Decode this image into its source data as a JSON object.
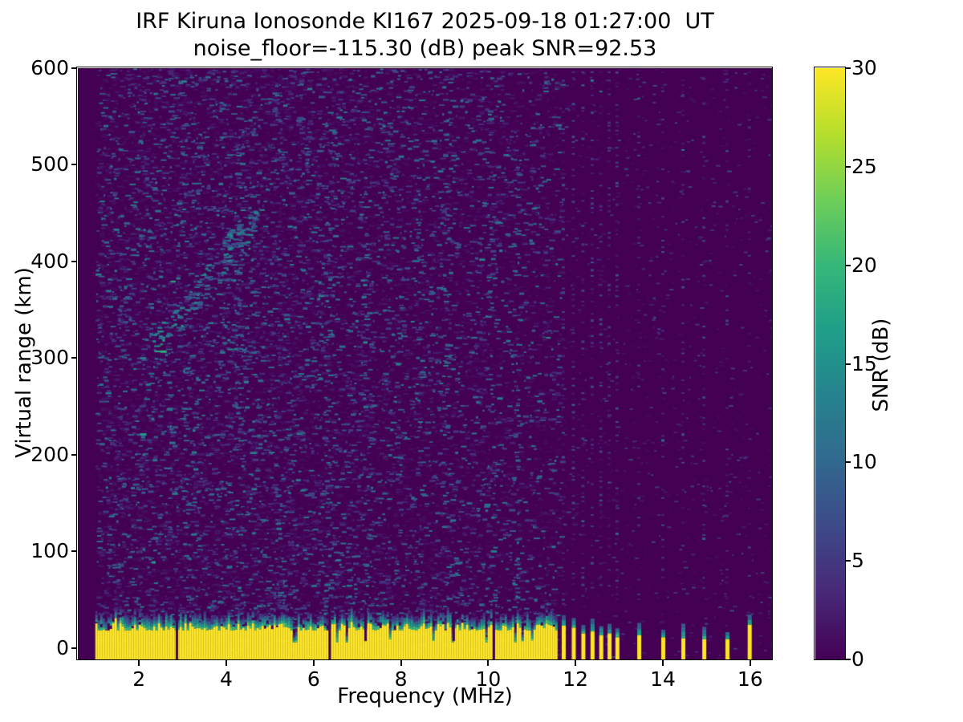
{
  "figure": {
    "title_line1": "IRF Kiruna Ionosonde KI167 2025-09-18 01:27:00  UT",
    "title_line2": "noise_floor=-115.30 (dB) peak SNR=92.53"
  },
  "chart_data": {
    "type": "heatmap",
    "title": "IRF Kiruna Ionosonde KI167 2025-09-18 01:27:00 UT\nnoise_floor=-115.30 (dB) peak SNR=92.53",
    "station": "KI167",
    "timestamp_ut": "2025-09-18 01:27:00",
    "noise_floor_db": -115.3,
    "peak_snr_db": 92.53,
    "xlabel": "Frequency (MHz)",
    "ylabel": "Virtual range (km)",
    "x_range_mhz": [
      0.6,
      16.5
    ],
    "y_range_km": [
      -12,
      600
    ],
    "x_ticks": [
      2,
      4,
      6,
      8,
      10,
      12,
      14,
      16
    ],
    "y_ticks": [
      0,
      100,
      200,
      300,
      400,
      500,
      600
    ],
    "grid": false,
    "colormap": "viridis",
    "colorbar": {
      "label": "SNR (dB)",
      "ticks": [
        0,
        5,
        10,
        15,
        20,
        25,
        30
      ],
      "min": 0,
      "max": 30,
      "position": "right"
    },
    "features": {
      "data_start_mhz": 1.0,
      "ground_clutter_band": {
        "freq_range_mhz": [
          1.0,
          11.58
        ],
        "saturated_top_km": 22,
        "transition_top_km": 40,
        "value_db": 30
      },
      "band_gaps_mhz": [
        2.86,
        6.36,
        10.12
      ],
      "band_notches_mhz": [
        7.18,
        9.2
      ],
      "echo_trace_points_mhz_km": [
        [
          2.3,
          308
        ],
        [
          2.6,
          326
        ],
        [
          2.9,
          344
        ],
        [
          3.2,
          362
        ],
        [
          3.5,
          380
        ],
        [
          3.8,
          398
        ],
        [
          4.1,
          416
        ],
        [
          4.4,
          434
        ],
        [
          4.7,
          452
        ]
      ],
      "diffuse_echo": {
        "freq_range_mhz": [
          3.9,
          4.7
        ],
        "range_km": [
          265,
          455
        ]
      },
      "enhanced_noise_columns_mhz": [
        3.05,
        4.25,
        6.3,
        7.2,
        8.35,
        9.0,
        10.05,
        10.6
      ],
      "rfi_stripes_mhz": [
        11.72,
        11.95,
        12.17,
        12.38,
        12.58,
        12.77,
        12.95,
        13.45,
        14.0,
        14.46,
        14.94,
        15.47,
        15.98
      ],
      "rfi_stripe_top_km": [
        23,
        21,
        15,
        17,
        13,
        15,
        11,
        13,
        11,
        10,
        9,
        9,
        24
      ],
      "noise_speckle_db_range": [
        1,
        15
      ]
    },
    "seed": 20250918
  }
}
